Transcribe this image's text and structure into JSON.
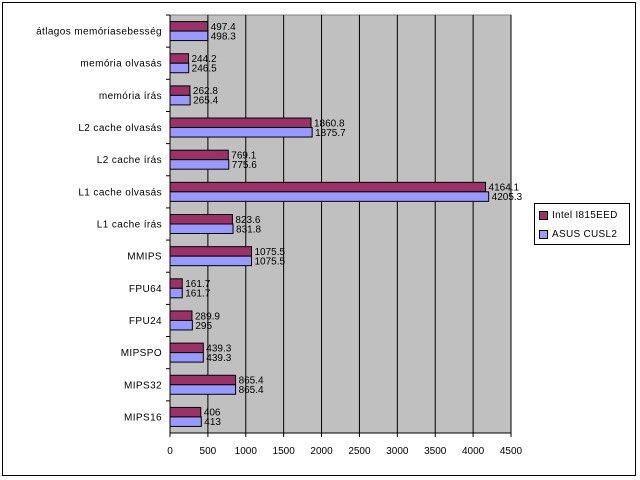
{
  "chart_data": {
    "type": "bar",
    "orientation": "horizontal",
    "categories": [
      "átlagos memóriasebesség",
      "memória olvasás",
      "memória írás",
      "L2 cache olvasás",
      "L2 cache írás",
      "L1 cache olvasás",
      "L1 cache írás",
      "MMIPS",
      "FPU64",
      "FPU24",
      "MIPSPO",
      "MIPS32",
      "MIPS16"
    ],
    "series": [
      {
        "name": "Intel I815EED",
        "color": "#993366",
        "values": [
          497.4,
          244.2,
          262.8,
          1860.8,
          769.1,
          4164.1,
          823.6,
          1075.5,
          161.7,
          289.9,
          439.3,
          865.4,
          406
        ],
        "labels": [
          "497.4",
          "244.2",
          "262.8",
          "1860.8",
          "769.1",
          "4164.1",
          "823.6",
          "1075.5",
          "161.7",
          "289.9",
          "439.3",
          "865.4",
          "406"
        ]
      },
      {
        "name": "ASUS CUSL2",
        "color": "#9999ff",
        "values": [
          498.3,
          246.5,
          265.4,
          1875.7,
          775.6,
          4205.3,
          831.8,
          1075.5,
          161.7,
          295,
          439.3,
          865.4,
          413
        ],
        "labels": [
          "498.3",
          "246.5",
          "265.4",
          "1875.7",
          "775.6",
          "4205.3",
          "831.8",
          "1075.5",
          "161.7",
          "295",
          "439.3",
          "865.4",
          "413"
        ]
      }
    ],
    "xlim": [
      0,
      4500
    ],
    "xticks": [
      0,
      500,
      1000,
      1500,
      2000,
      2500,
      3000,
      3500,
      4000,
      4500
    ],
    "grid": true,
    "plot_background": "#c0c0c0",
    "legend": {
      "position": "right",
      "order": [
        "Intel I815EED",
        "ASUS CUSL2"
      ]
    },
    "title": "",
    "xlabel": "",
    "ylabel": ""
  }
}
